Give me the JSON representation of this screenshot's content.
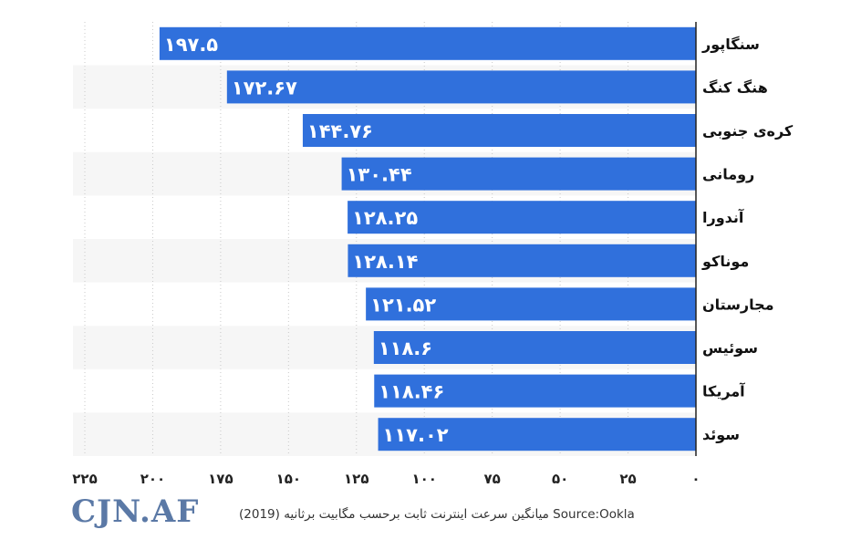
{
  "chart_data": {
    "type": "bar",
    "orientation": "horizontal",
    "x_axis_direction": "right-to-left",
    "categories": [
      "سنگاپور",
      "هنگ کنگ",
      "کره‌ی جنوبی",
      "رومانی",
      "آندورا",
      "موناکو",
      "مجارستان",
      "سوئیس",
      "آمریکا",
      "سوئد"
    ],
    "values": [
      197.5,
      172.67,
      144.76,
      130.44,
      128.25,
      128.14,
      121.52,
      118.6,
      118.46,
      117.02
    ],
    "value_labels": [
      "۱۹۷.۵",
      "۱۷۲.۶۷",
      "۱۴۴.۷۶",
      "۱۳۰.۴۴",
      "۱۲۸.۲۵",
      "۱۲۸.۱۴",
      "۱۲۱.۵۲",
      "۱۱۸.۶",
      "۱۱۸.۴۶",
      "۱۱۷.۰۲"
    ],
    "xlim": [
      0,
      225
    ],
    "ticks": [
      0,
      25,
      50,
      75,
      100,
      125,
      150,
      175,
      200,
      225
    ],
    "tick_labels": [
      "۰",
      "۲۵",
      "۵۰",
      "۷۵",
      "۱۰۰",
      "۱۲۵",
      "۱۵۰",
      "۱۷۵",
      "۲۰۰",
      "۲۲۵"
    ],
    "grid": true,
    "bar_color": "#3070dc",
    "label_color": "#ffffff"
  },
  "footer": {
    "logo": "CJN.AF",
    "source": "میانگین سرعت اینترنت ثابت برحسب مگابیت برثانیه  (2019) Source:Ookla"
  }
}
